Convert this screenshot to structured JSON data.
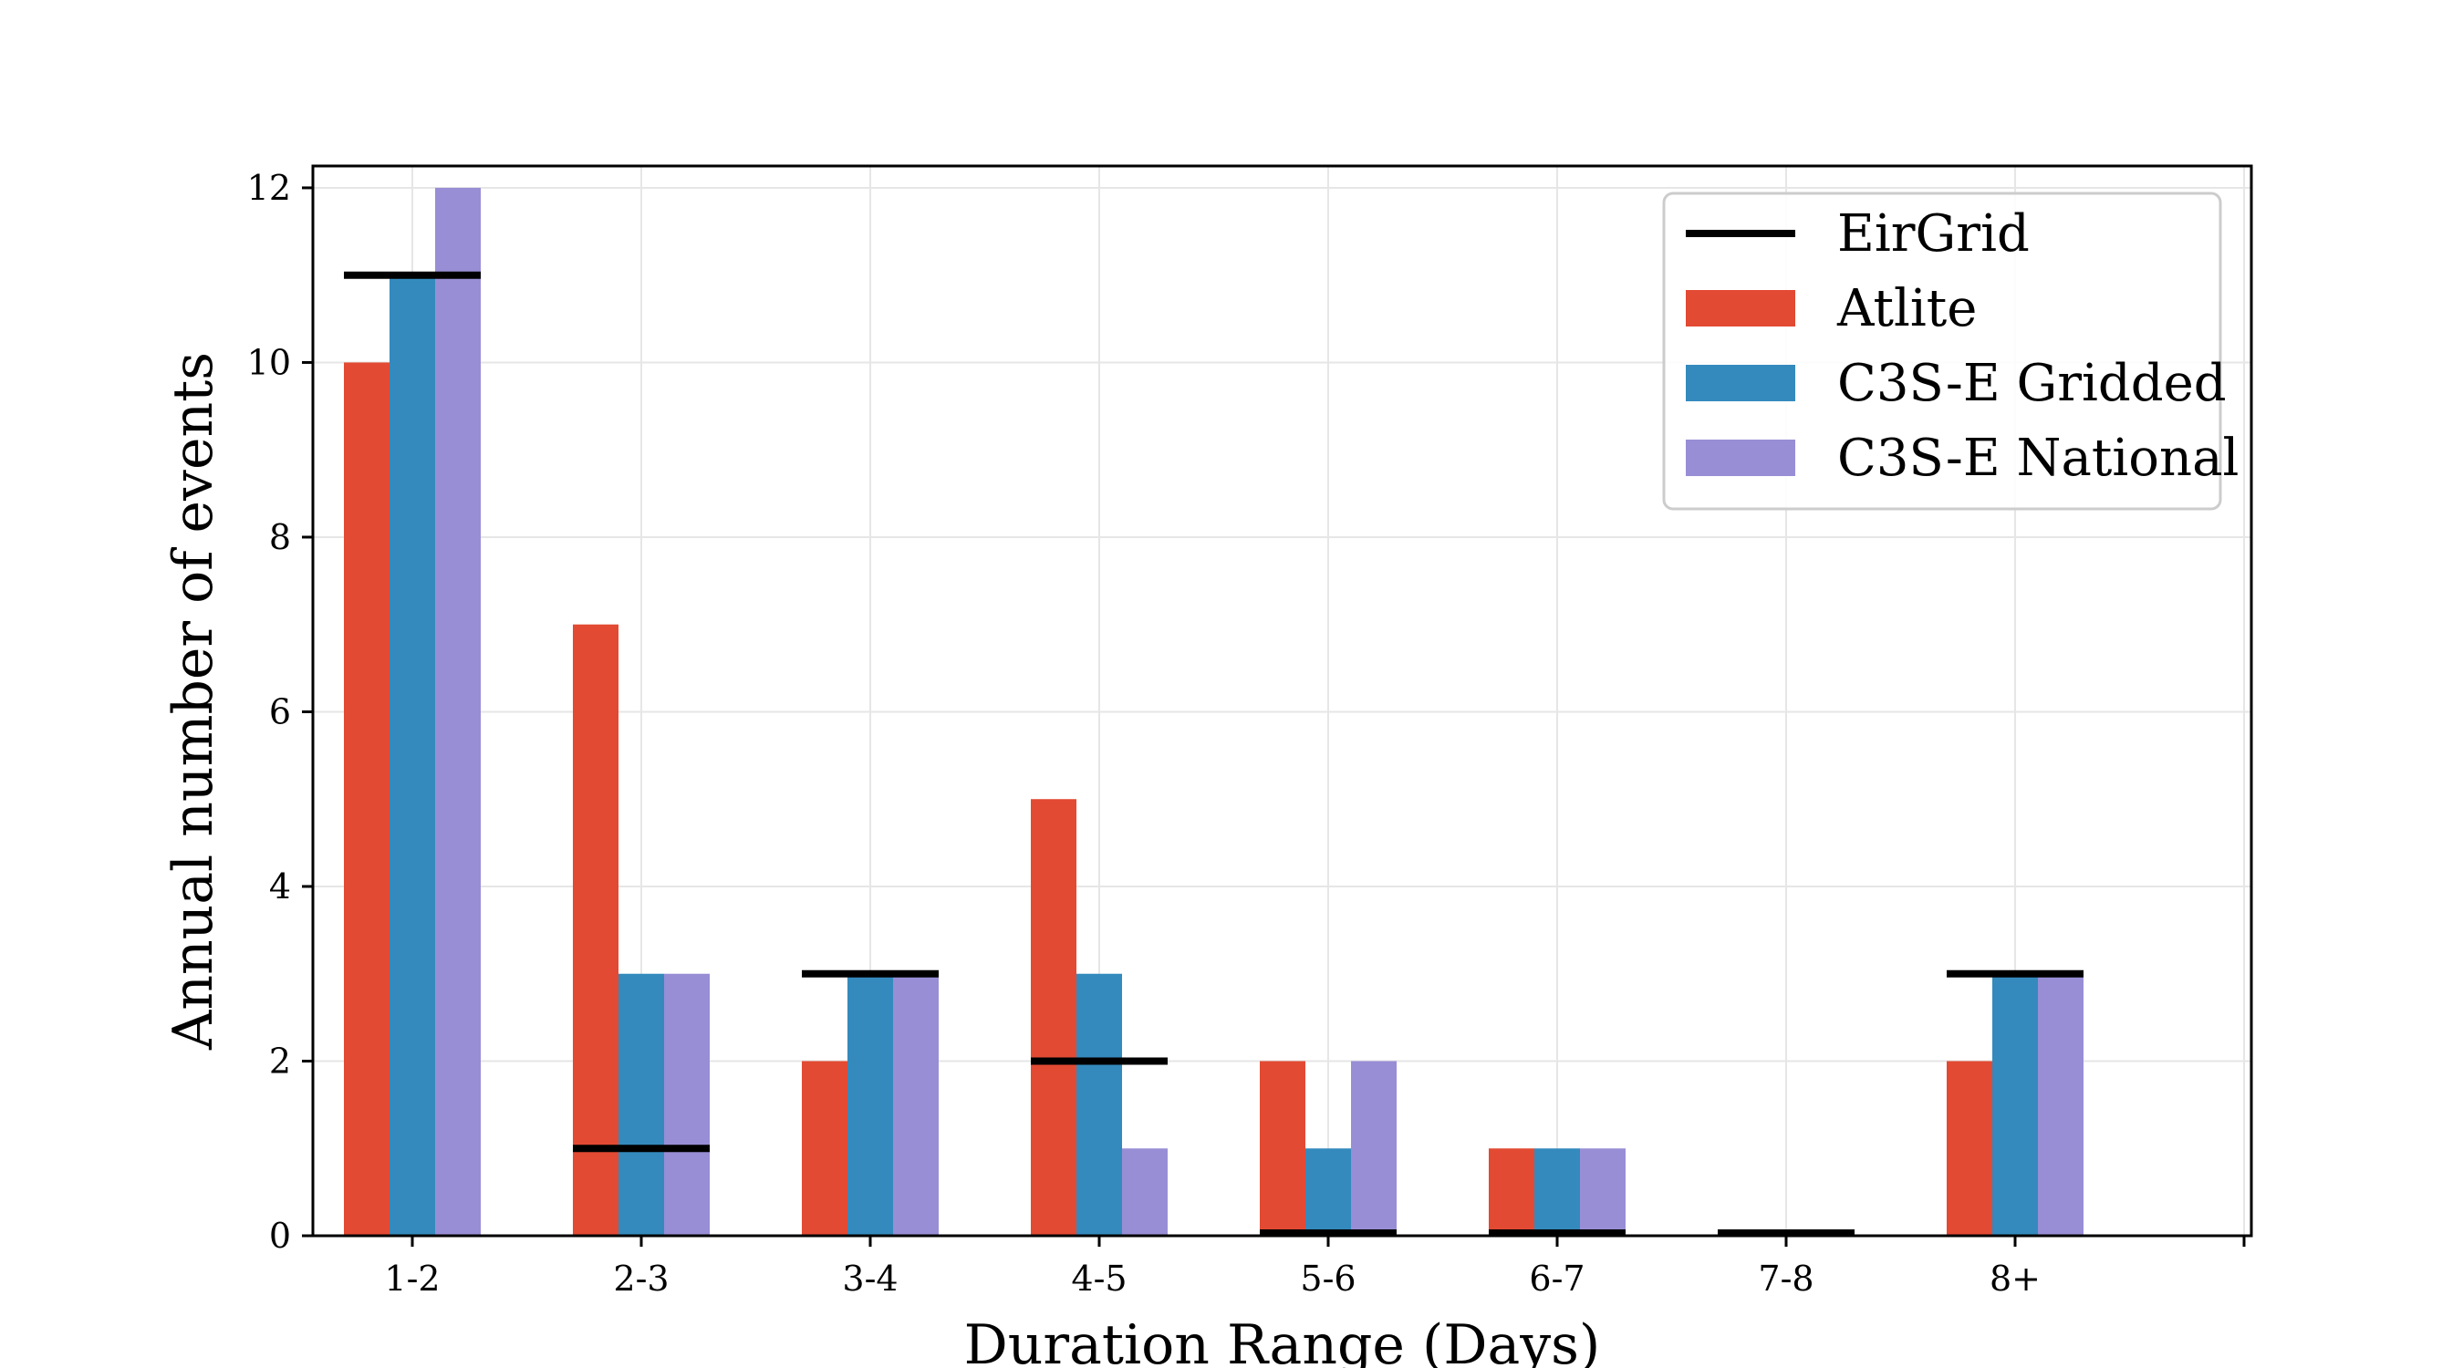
{
  "chart_data": {
    "type": "bar",
    "categories": [
      "1-2",
      "2-3",
      "3-4",
      "4-5",
      "5-6",
      "6-7",
      "7-8",
      "8+"
    ],
    "series": [
      {
        "name": "Atlite",
        "color": "#E24A33",
        "values": [
          10,
          7,
          2,
          5,
          2,
          1,
          0,
          2
        ]
      },
      {
        "name": "C3S-E Gridded",
        "color": "#348ABD",
        "values": [
          11,
          3,
          3,
          3,
          1,
          1,
          0,
          3
        ]
      },
      {
        "name": "C3S-E National",
        "color": "#988ED5",
        "values": [
          12,
          3,
          3,
          1,
          2,
          1,
          0,
          3
        ]
      }
    ],
    "reference": {
      "name": "EirGrid",
      "color": "#000000",
      "values": [
        11,
        1,
        3,
        2,
        0,
        0,
        0,
        3
      ]
    },
    "xlabel": "Duration Range (Days)",
    "ylabel": "Annual number of events",
    "ylim": [
      0,
      12.25
    ],
    "yticks": [
      0,
      2,
      4,
      6,
      8,
      10,
      12
    ],
    "grid": true,
    "legend": "top-right"
  }
}
